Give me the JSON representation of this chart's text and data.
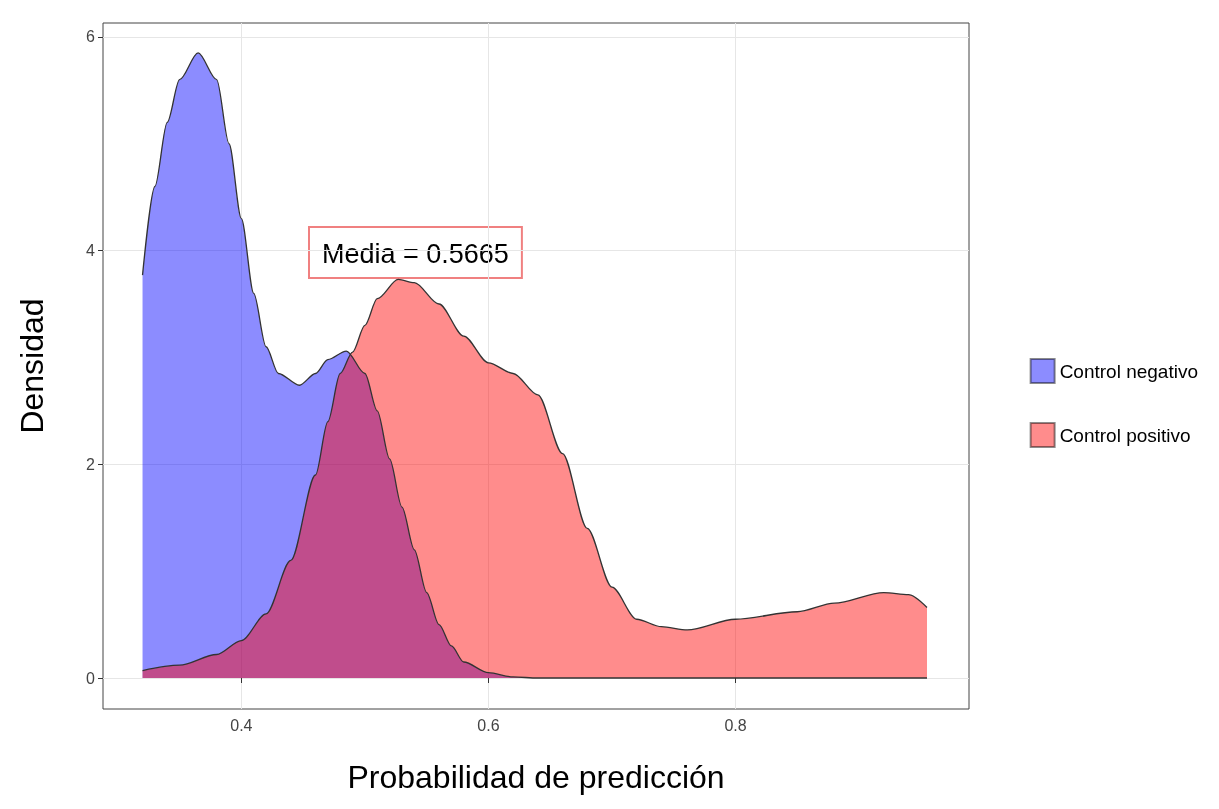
{
  "chart_data": {
    "type": "area",
    "xlabel": "Probabilidad de predicción",
    "ylabel": "Densidad",
    "xlim": [
      0.288,
      0.989
    ],
    "ylim": [
      -0.29,
      6.13
    ],
    "xticks": [
      0.4,
      0.6,
      0.8
    ],
    "yticks": [
      0,
      2,
      4,
      6
    ],
    "grid": true,
    "legend": "right",
    "marker": "none",
    "annotations": [
      "Media = 0.5665"
    ],
    "series": [
      {
        "name": "Control negativo",
        "color": "#0000ff",
        "x": [
          0.32,
          0.33,
          0.34,
          0.35,
          0.365,
          0.38,
          0.39,
          0.4,
          0.41,
          0.42,
          0.43,
          0.447,
          0.46,
          0.47,
          0.485,
          0.5,
          0.51,
          0.52,
          0.53,
          0.54,
          0.55,
          0.56,
          0.57,
          0.58,
          0.6,
          0.62,
          0.64,
          0.7,
          0.8,
          0.955
        ],
        "values": [
          3.77,
          4.6,
          5.2,
          5.6,
          5.85,
          5.6,
          5.0,
          4.3,
          3.6,
          3.1,
          2.85,
          2.74,
          2.85,
          2.98,
          3.06,
          2.85,
          2.5,
          2.05,
          1.6,
          1.2,
          0.8,
          0.5,
          0.3,
          0.15,
          0.05,
          0.01,
          0,
          0,
          0,
          0
        ]
      },
      {
        "name": "Control positivo",
        "color": "#ff0000",
        "x": [
          0.32,
          0.35,
          0.38,
          0.4,
          0.42,
          0.44,
          0.46,
          0.47,
          0.48,
          0.49,
          0.5,
          0.51,
          0.527,
          0.54,
          0.56,
          0.58,
          0.6,
          0.62,
          0.64,
          0.66,
          0.68,
          0.7,
          0.72,
          0.74,
          0.761,
          0.8,
          0.85,
          0.88,
          0.92,
          0.94,
          0.955
        ],
        "values": [
          0.07,
          0.12,
          0.22,
          0.35,
          0.6,
          1.1,
          1.9,
          2.4,
          2.85,
          3.05,
          3.3,
          3.55,
          3.73,
          3.7,
          3.5,
          3.2,
          2.95,
          2.85,
          2.65,
          2.1,
          1.4,
          0.85,
          0.55,
          0.48,
          0.45,
          0.55,
          0.62,
          0.7,
          0.8,
          0.78,
          0.66
        ]
      }
    ]
  }
}
